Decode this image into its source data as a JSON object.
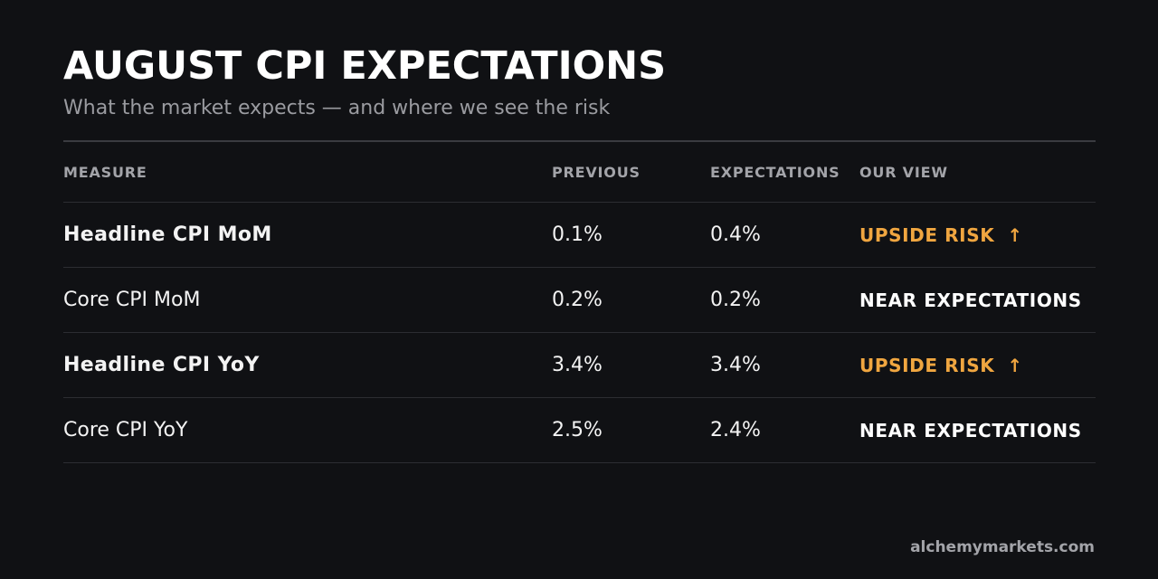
{
  "title": "AUGUST CPI EXPECTATIONS",
  "subtitle": "What the market expects — and where we see the risk",
  "table": {
    "headers": {
      "measure": "MEASURE",
      "previous": "PREVIOUS",
      "expectations": "EXPECTATIONS",
      "view": "OUR VIEW"
    },
    "rows": [
      {
        "measure": "Headline CPI MoM",
        "previous": "0.1%",
        "expectations": "0.4%",
        "view": "UPSIDE RISK",
        "view_icon": "up-arrow-icon",
        "arrow": "↑"
      },
      {
        "measure": "Core CPI MoM",
        "previous": "0.2%",
        "expectations": "0.2%",
        "view": "NEAR EXPECTATIONS"
      },
      {
        "measure": "Headline CPI YoY",
        "previous": "3.4%",
        "expectations": "3.4%",
        "view": "UPSIDE RISK",
        "view_icon": "up-arrow-icon",
        "arrow": "↑"
      },
      {
        "measure": "Core CPI YoY",
        "previous": "2.5%",
        "expectations": "2.4%",
        "view": "NEAR EXPECTATIONS"
      }
    ]
  },
  "colors": {
    "background": "#101114",
    "upside_risk": "#f0a640",
    "text": "#ffffff",
    "muted": "#a3a4a9"
  },
  "footer": "alchemymarkets.com"
}
